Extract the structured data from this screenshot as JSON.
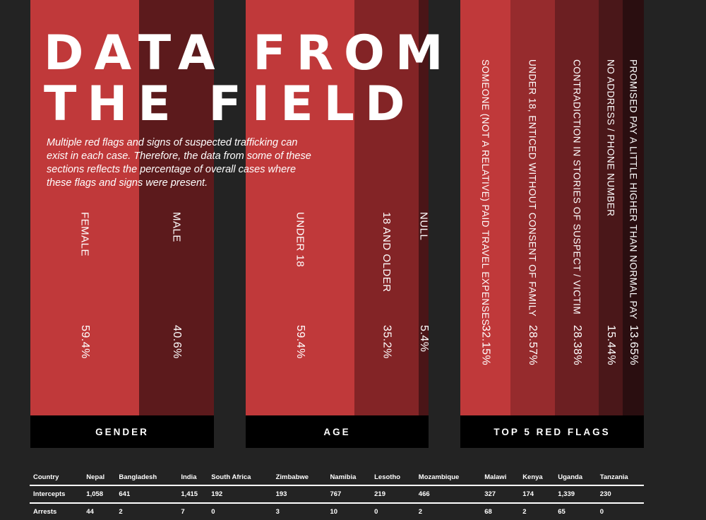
{
  "title_line1": "DATA FROM",
  "title_line2": "THE FIELD",
  "subtitle": "Multiple red flags and signs of suspected trafficking can exist in each case. Therefore, the data from some of these sections reflects the percentage of overall cases where these flags and signs were present.",
  "chart_data": [
    {
      "type": "bar",
      "title": "GENDER",
      "categories": [
        "FEMALE",
        "MALE"
      ],
      "values": [
        59.4,
        40.6
      ],
      "value_labels": [
        "59.4%",
        "40.6%"
      ],
      "colors": [
        "#c0393a",
        "#5c1a1c"
      ]
    },
    {
      "type": "bar",
      "title": "AGE",
      "categories": [
        "UNDER 18",
        "18 AND OLDER",
        "NULL"
      ],
      "values": [
        59.4,
        35.2,
        5.4
      ],
      "value_labels": [
        "59.4%",
        "35.2%",
        "5.4%"
      ],
      "colors": [
        "#c0393a",
        "#832426",
        "#4a1517"
      ]
    },
    {
      "type": "bar",
      "title": "TOP 5 RED FLAGS",
      "categories": [
        "SOMEONE (NOT A RELATIVE) PAID TRAVEL EXPENSES",
        "UNDER 18, ENTICED WITHOUT CONSENT OF FAMILY",
        "CONTRADICTION IN STORIES OF SUSPECT / VICTIM",
        "NO ADDRESS / PHONE NUMBER",
        "PROMISED PAY A LITTLE HIGHER THAN NORMAL PAY"
      ],
      "values": [
        32.15,
        28.57,
        28.38,
        15.44,
        13.65
      ],
      "value_labels": [
        "32.15%",
        "28.57%",
        "28.38%",
        "15.44%",
        "13.65%"
      ],
      "colors": [
        "#c0393a",
        "#962b2d",
        "#6c1f22",
        "#4a1719",
        "#2a0e10"
      ]
    }
  ],
  "table": {
    "headers": [
      "Country",
      "Nepal",
      "Bangladesh",
      "India",
      "South Africa",
      "Zimbabwe",
      "Namibia",
      "Lesotho",
      "Mozambique",
      "Malawi",
      "Kenya",
      "Uganda",
      "Tanzania"
    ],
    "rows": [
      [
        "Intercepts",
        "1,058",
        "641",
        "1,415",
        "192",
        "193",
        "767",
        "219",
        "466",
        "327",
        "174",
        "1,339",
        "230"
      ],
      [
        "Arrests",
        "44",
        "2",
        "7",
        "0",
        "3",
        "10",
        "0",
        "2",
        "68",
        "2",
        "65",
        "0"
      ]
    ]
  }
}
